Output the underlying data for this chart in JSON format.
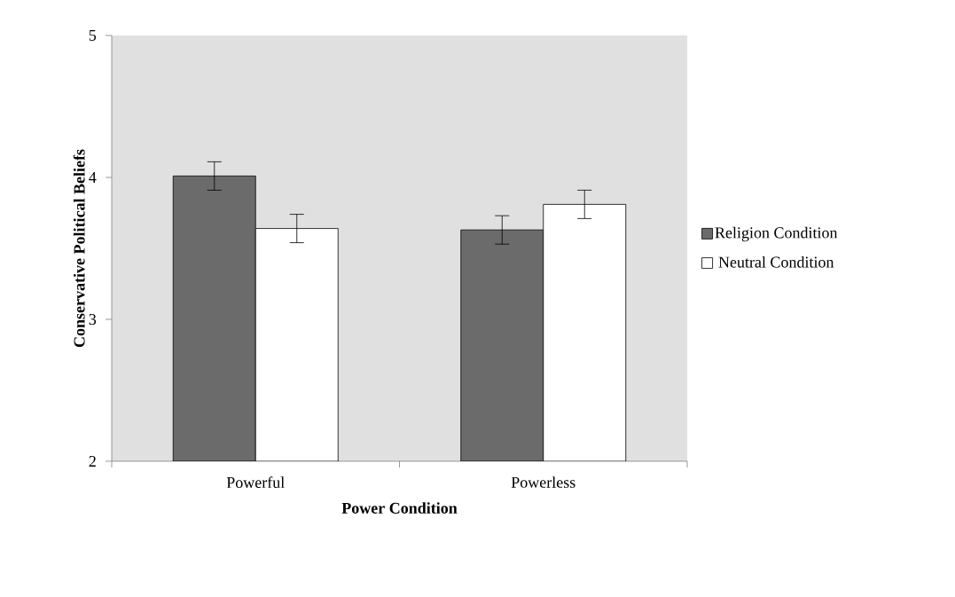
{
  "chart_data": {
    "type": "bar",
    "xlabel": "Power Condition",
    "ylabel": "Conservative Political Beliefs",
    "categories": [
      "Powerful",
      "Powerless"
    ],
    "series": [
      {
        "name": "Religion Condition",
        "color": "#6b6b6b",
        "values": [
          4.01,
          3.63
        ],
        "errors": [
          0.1,
          0.1
        ]
      },
      {
        "name": "Neutral Condition",
        "color": "#ffffff",
        "values": [
          3.64,
          3.81
        ],
        "errors": [
          0.1,
          0.1
        ]
      }
    ],
    "ylim": [
      2,
      5
    ],
    "yticks": [
      2,
      3,
      4,
      5
    ],
    "grid": false,
    "legend": "right"
  }
}
